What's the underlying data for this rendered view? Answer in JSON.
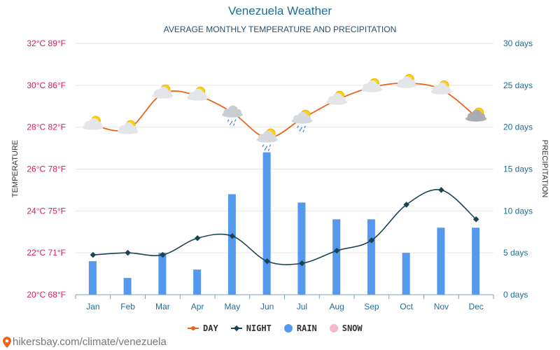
{
  "chart_data": {
    "type": "bar+line",
    "title": "Venezuela Weather",
    "subtitle": "AVERAGE MONTHLY TEMPERATURE AND PRECIPITATION",
    "categories": [
      "Jan",
      "Feb",
      "Mar",
      "Apr",
      "May",
      "Jun",
      "Jul",
      "Aug",
      "Sep",
      "Oct",
      "Nov",
      "Dec"
    ],
    "series": [
      {
        "name": "DAY",
        "kind": "line",
        "axis": "temperature",
        "unit": "°C",
        "color": "#e8651a",
        "values": [
          28.1,
          27.9,
          29.6,
          29.5,
          28.7,
          27.5,
          28.4,
          29.3,
          29.9,
          30.1,
          29.8,
          28.5
        ]
      },
      {
        "name": "NIGHT",
        "kind": "line",
        "axis": "temperature",
        "unit": "°C",
        "color": "#1b4356",
        "values": [
          21.9,
          22.0,
          21.9,
          22.7,
          22.8,
          21.6,
          21.5,
          22.1,
          22.6,
          24.3,
          25.0,
          23.6
        ]
      },
      {
        "name": "RAIN",
        "kind": "bar",
        "axis": "precipitation",
        "unit": "days",
        "color": "#5599ee",
        "values": [
          4,
          2,
          5,
          3,
          12,
          17,
          11,
          9,
          9,
          5,
          8,
          8
        ]
      },
      {
        "name": "SNOW",
        "kind": "bar",
        "axis": "precipitation",
        "unit": "days",
        "color": "#f5b8cc",
        "values": [
          0,
          0,
          0,
          0,
          0,
          0,
          0,
          0,
          0,
          0,
          0,
          0
        ]
      }
    ],
    "weather_icons": [
      "partly-cloudy",
      "partly-cloudy",
      "partly-cloudy",
      "partly-cloudy",
      "rain-cloud",
      "partly-cloudy-rain",
      "partly-cloudy-rain",
      "partly-cloudy",
      "partly-cloudy",
      "partly-cloudy",
      "partly-cloudy",
      "partly-cloudy-dark"
    ],
    "ylabel_left": "TEMPERATURE",
    "ylabel_right": "PRECIPITATION",
    "ylim_left": [
      20,
      32
    ],
    "ylim_right": [
      0,
      30
    ],
    "left_ticks": [
      "20°C 68°F",
      "22°C 71°F",
      "24°C 75°F",
      "26°C 78°F",
      "28°C 82°F",
      "30°C 86°F",
      "32°C 89°F"
    ],
    "right_ticks": [
      "0 days",
      "5 days",
      "10 days",
      "15 days",
      "20 days",
      "25 days",
      "30 days"
    ],
    "grid": true,
    "legend_position": "bottom-center"
  },
  "legend": {
    "day": "DAY",
    "night": "NIGHT",
    "rain": "RAIN",
    "snow": "SNOW"
  },
  "source": "hikersbay.com/climate/venezuela",
  "colors": {
    "title": "#1f6e96",
    "left_axis": "#d81b60",
    "right_axis": "#1f6e96",
    "grid": "#e6e6e6"
  }
}
